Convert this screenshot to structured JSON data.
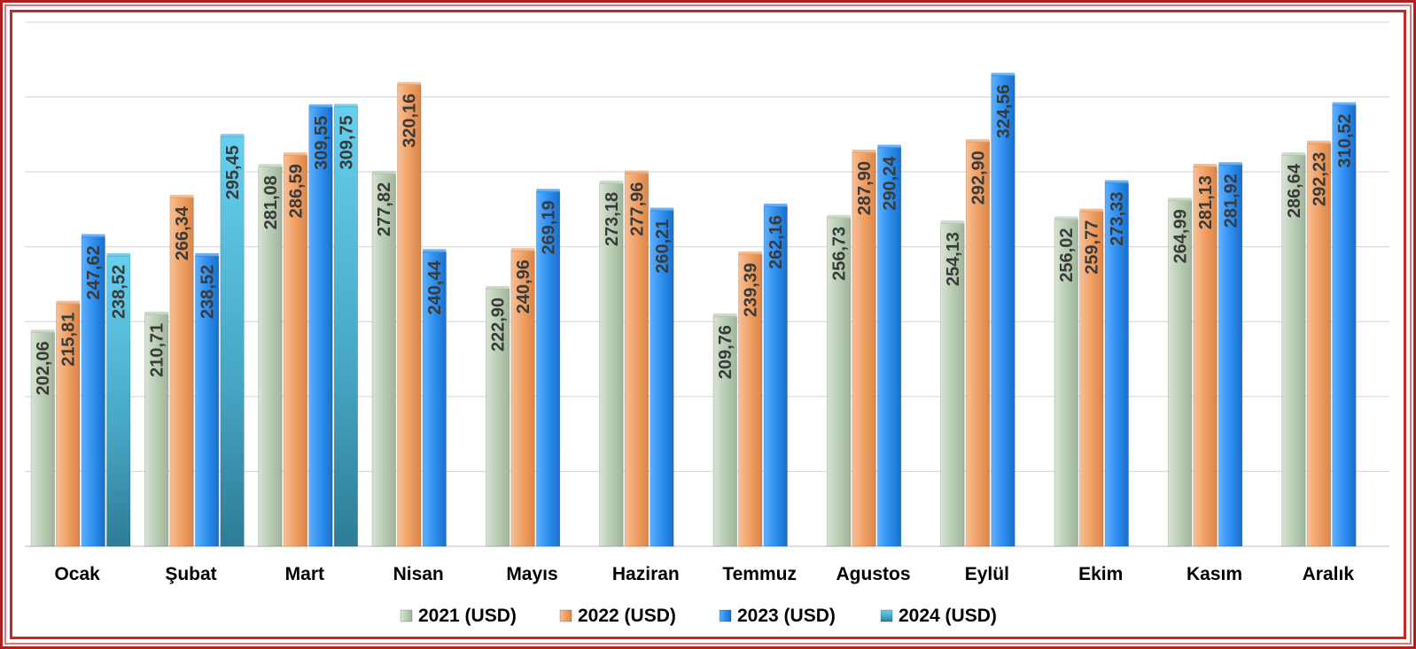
{
  "chart_data": {
    "type": "bar",
    "title": "",
    "xlabel": "",
    "ylabel": "",
    "ylim": [
      100,
      350
    ],
    "grid": true,
    "legend_position": "bottom",
    "categories": [
      "Ocak",
      "Şubat",
      "Mart",
      "Nisan",
      "Mayıs",
      "Haziran",
      "Temmuz",
      "Agustos",
      "Eylül",
      "Ekim",
      "Kasım",
      "Aralık"
    ],
    "series": [
      {
        "name": "2021 (USD)",
        "color": "#b9ccb4",
        "values": [
          202.06,
          210.71,
          281.08,
          277.82,
          222.9,
          273.18,
          209.76,
          256.73,
          254.13,
          256.02,
          264.99,
          286.64
        ],
        "labels": [
          "202,06",
          "210,71",
          "281,08",
          "277,82",
          "222,90",
          "273,18",
          "209,76",
          "256,73",
          "254,13",
          "256,02",
          "264,99",
          "286,64"
        ]
      },
      {
        "name": "2022 (USD)",
        "color": "#f0a064",
        "values": [
          215.81,
          266.34,
          286.59,
          320.16,
          240.96,
          277.96,
          239.39,
          287.9,
          292.9,
          259.77,
          281.13,
          292.23
        ],
        "labels": [
          "215,81",
          "266,34",
          "286,59",
          "320,16",
          "240,96",
          "277,96",
          "239,39",
          "287,90",
          "292,90",
          "259,77",
          "281,13",
          "292,23"
        ]
      },
      {
        "name": "2023 (USD)",
        "color": "#2e8ff0",
        "values": [
          247.62,
          238.52,
          309.55,
          240.44,
          269.19,
          260.21,
          262.16,
          290.24,
          324.56,
          273.33,
          281.92,
          310.52
        ],
        "labels": [
          "247,62",
          "238,52",
          "309,55",
          "240,44",
          "269,19",
          "260,21",
          "262,16",
          "290,24",
          "324,56",
          "273,33",
          "281,92",
          "310,52"
        ]
      },
      {
        "name": "2024 (USD)",
        "color": "#4fb8d8",
        "values": [
          238.52,
          295.45,
          309.75,
          null,
          null,
          null,
          null,
          null,
          null,
          null,
          null,
          null
        ],
        "labels": [
          "238,52",
          "295,45",
          "309,75",
          "",
          "",
          "",
          "",
          "",
          "",
          "",
          "",
          ""
        ]
      }
    ]
  }
}
